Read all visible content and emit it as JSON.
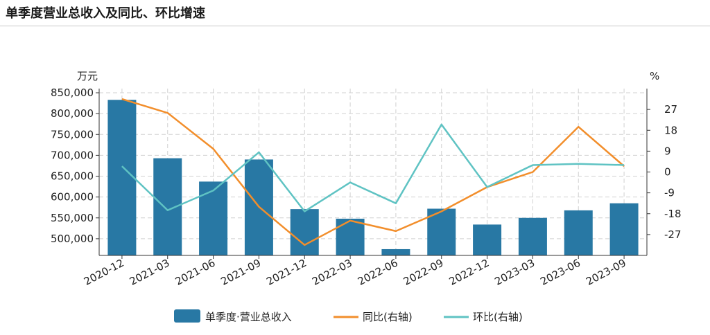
{
  "title": "单季度营业总收入及同比、环比增速",
  "chart_data": {
    "type": "bar",
    "categories": [
      "2020-12",
      "2021-03",
      "2021-06",
      "2021-09",
      "2021-12",
      "2022-03",
      "2022-06",
      "2022-09",
      "2022-12",
      "2023-03",
      "2023-06",
      "2023-09"
    ],
    "left_axis": {
      "unit": "万元",
      "ylim": [
        460000,
        860000
      ],
      "ticks": [
        500000,
        550000,
        600000,
        650000,
        700000,
        750000,
        800000,
        850000
      ],
      "tick_labels": [
        "500,000",
        "550,000",
        "600,000",
        "650,000",
        "700,000",
        "750,000",
        "800,000",
        "850,000"
      ]
    },
    "right_axis": {
      "unit": "%",
      "ylim": [
        -36,
        36
      ],
      "ticks": [
        -27,
        -18,
        -9,
        0,
        9,
        18,
        27
      ],
      "tick_labels": [
        "-27",
        "-18",
        "-9",
        "0",
        "9",
        "18",
        "27"
      ]
    },
    "series": [
      {
        "name": "单季度·营业总收入",
        "type": "bar",
        "axis": "left",
        "color": "#2878a4",
        "values": [
          833000,
          693000,
          637000,
          690000,
          571000,
          548000,
          475000,
          572000,
          534000,
          550000,
          568000,
          585000
        ]
      },
      {
        "name": "同比(右轴)",
        "type": "line",
        "axis": "right",
        "color": "#f28e2b",
        "values": [
          31.5,
          25.5,
          10,
          -15,
          -31.5,
          -21,
          -25.5,
          -17,
          -6.5,
          0,
          19.5,
          2.5
        ]
      },
      {
        "name": "环比(右轴)",
        "type": "line",
        "axis": "right",
        "color": "#5fc3c3",
        "values": [
          2.5,
          -16.5,
          -8,
          8.5,
          -17,
          -4.5,
          -13.5,
          20.5,
          -6.5,
          3,
          3.5,
          3
        ]
      }
    ],
    "grid": true,
    "legend_position": "bottom"
  }
}
